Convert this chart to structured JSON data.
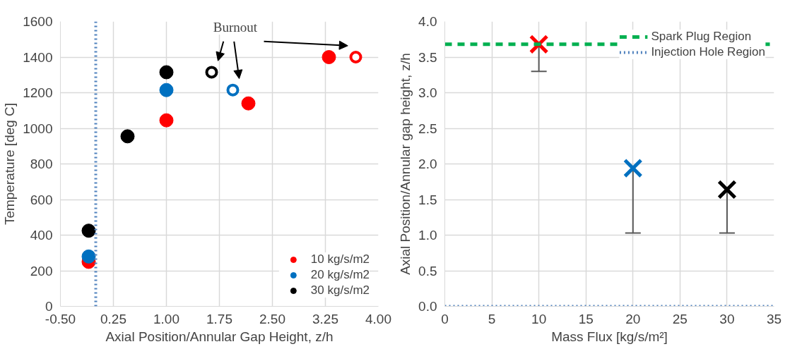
{
  "chart_data": [
    {
      "type": "scatter",
      "xlabel": "Axial Position/Annular Gap Height, z/h",
      "ylabel": "Temperature [deg C]",
      "annotations": [
        "Burnout"
      ],
      "series": [
        {
          "name": "10 kg/s/m2",
          "color": "#ff0000",
          "x": [
            -0.1,
            1.0,
            2.16,
            3.3
          ],
          "values": [
            250,
            1045,
            1140,
            1400
          ]
        },
        {
          "name": "20 kg/s/m2",
          "color": "#0070c0",
          "x": [
            -0.1,
            1.0
          ],
          "values": [
            280,
            1215
          ]
        },
        {
          "name": "30 kg/s/m2",
          "color": "#000000",
          "x": [
            -0.1,
            0.45,
            1.0
          ],
          "values": [
            425,
            955,
            1315
          ]
        },
        {
          "color": "#ff0000",
          "x": [
            3.68
          ],
          "values": [
            1400
          ]
        },
        {
          "color": "#0070c0",
          "x": [
            1.94
          ],
          "values": [
            1215
          ]
        },
        {
          "color": "#000000",
          "x": [
            1.64
          ],
          "values": [
            1315
          ]
        }
      ],
      "ref_lines": [
        {
          "axis": "x",
          "value": 0,
          "color": "#4f81bd",
          "line_style": "dotted"
        }
      ],
      "xlim": [
        -0.5,
        4.0
      ],
      "xticks": [
        {
          "value": -0.5,
          "label": "-0.50"
        },
        {
          "value": 0.25,
          "label": "0.25"
        },
        {
          "value": 1.0,
          "label": "1.00"
        },
        {
          "value": 1.75,
          "label": "1.75"
        },
        {
          "value": 2.5,
          "label": "2.50"
        },
        {
          "value": 3.25,
          "label": "3.25"
        },
        {
          "value": 4.0,
          "label": "4.00"
        }
      ],
      "ylim": [
        0,
        1600
      ],
      "yticks": [
        0,
        200,
        400,
        600,
        800,
        1000,
        1200,
        1400,
        1600
      ],
      "grid": true,
      "legend": "bottom right",
      "marker": "circle"
    },
    {
      "type": "scatter",
      "xlabel": "Mass Flux [kg/s/m²]",
      "ylabel": "Axial Position/Annular gap height, z/h",
      "series": [
        {
          "colors": [
            "#ff0000",
            "#0070c0",
            "#000000"
          ],
          "x": [
            10,
            20,
            30
          ],
          "values": [
            3.68,
            1.94,
            1.64
          ],
          "errors": [
            [
              3.3,
              3.68
            ],
            [
              1.03,
              1.94
            ],
            [
              1.03,
              1.64
            ]
          ]
        }
      ],
      "ref_lines": [
        {
          "axis": "y",
          "value": 3.68,
          "label": "Spark Plug Region",
          "color": "#00b050",
          "line_style": "dashed"
        },
        {
          "axis": "y",
          "value": 0,
          "label": "Injection Hole Region",
          "color": "#4f81bd",
          "line_style": "dotted"
        }
      ],
      "xlim": [
        0,
        35
      ],
      "xticks": [
        0,
        5,
        10,
        15,
        20,
        25,
        30,
        35
      ],
      "ylim": [
        0,
        4.0
      ],
      "yticks": [
        {
          "value": 0,
          "label": "0.0"
        },
        {
          "value": 0.5,
          "label": "0.5"
        },
        {
          "value": 1.0,
          "label": "1.0"
        },
        {
          "value": 1.5,
          "label": "1.5"
        },
        {
          "value": 2.0,
          "label": "2.0"
        },
        {
          "value": 2.5,
          "label": "2.5"
        },
        {
          "value": 3.0,
          "label": "3.0"
        },
        {
          "value": 3.5,
          "label": "3.5"
        },
        {
          "value": 4.0,
          "label": "4.0"
        }
      ],
      "grid": true,
      "legend": "top right",
      "marker": "cross"
    }
  ]
}
